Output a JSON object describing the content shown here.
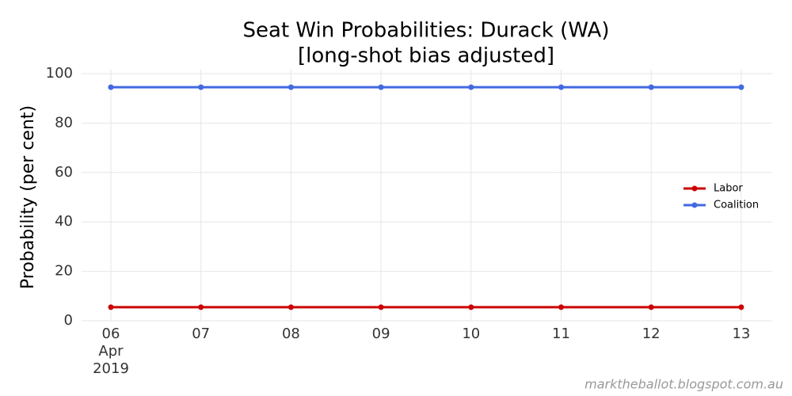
{
  "chart_data": {
    "type": "line",
    "title": "Seat Win Probabilities: Durack (WA)",
    "subtitle": "[long-shot bias adjusted]",
    "y_label": "Probability (per cent)",
    "categories": [
      "06 Apr 2019",
      "07",
      "08",
      "09",
      "10",
      "11",
      "12",
      "13"
    ],
    "series": [
      {
        "name": "Labor",
        "color": "#cc0000",
        "values": [
          5.5,
          5.5,
          5.5,
          5.5,
          5.5,
          5.5,
          5.5,
          5.5
        ]
      },
      {
        "name": "Coalition",
        "color": "#4169e1",
        "values": [
          94.5,
          94.5,
          94.5,
          94.5,
          94.5,
          94.5,
          94.5,
          94.5
        ]
      }
    ],
    "ylim": [
      0,
      100
    ],
    "yticks": [
      0,
      20,
      40,
      60,
      80,
      100
    ],
    "grid": true,
    "legend": "right",
    "source": "marktheballot.blogspot.com.au"
  }
}
